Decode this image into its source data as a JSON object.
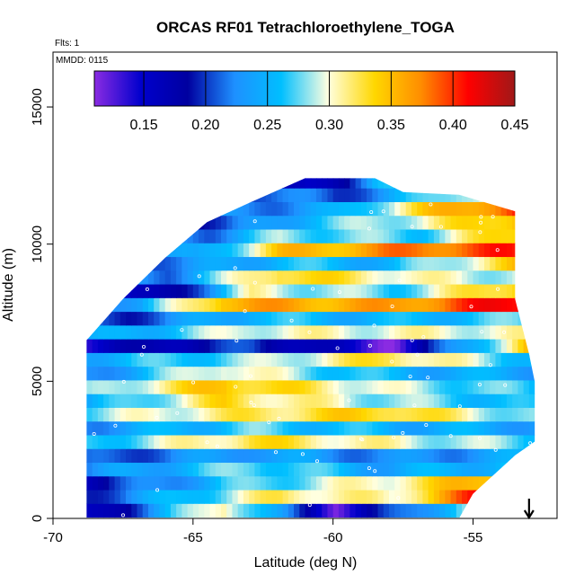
{
  "chart_data": {
    "type": "heatmap",
    "title": "ORCAS RF01 Tetrachloroethylene_TOGA",
    "flights_label": "Flts: 1",
    "date_label": "MMDD: 0115",
    "xlabel": "Latitude (deg N)",
    "ylabel": "Altitude (m)",
    "xlim": [
      -70,
      -52
    ],
    "ylim": [
      0,
      17000
    ],
    "x_ticks": [
      -70,
      -65,
      -60,
      -55
    ],
    "y_ticks": [
      0,
      5000,
      10000,
      15000
    ],
    "colorbar": {
      "range": [
        0.11,
        0.45
      ],
      "ticks": [
        0.15,
        0.2,
        0.25,
        0.3,
        0.35,
        0.4,
        0.45
      ],
      "tick_labels": [
        "0.15",
        "0.20",
        "0.25",
        "0.30",
        "0.35",
        "0.40",
        "0.45"
      ],
      "colors": [
        "#8a2be2",
        "#0000cd",
        "#0000a0",
        "#1e90ff",
        "#00bfff",
        "#ffffe0",
        "#ffd700",
        "#ff8c00",
        "#ff0000",
        "#a01818"
      ]
    },
    "outline": [
      [
        -68.8,
        0
      ],
      [
        -68.8,
        6500
      ],
      [
        -67.5,
        8000
      ],
      [
        -66,
        9500
      ],
      [
        -64.5,
        10800
      ],
      [
        -63,
        11500
      ],
      [
        -61,
        12400
      ],
      [
        -58.5,
        12400
      ],
      [
        -57.5,
        11900
      ],
      [
        -55.5,
        11800
      ],
      [
        -53.5,
        11200
      ],
      [
        -53.5,
        8000
      ],
      [
        -53.0,
        6000
      ],
      [
        -52.8,
        5000
      ],
      [
        -52.8,
        2800
      ],
      [
        -53.5,
        2300
      ],
      [
        -55,
        900
      ],
      [
        -55.5,
        0
      ]
    ],
    "bands": [
      {
        "y": 300,
        "v": 0.22,
        "xs": [
          -68.8,
          -64,
          -60,
          -55.5
        ],
        "vs": [
          0.15,
          0.32,
          0.13,
          0.28
        ]
      },
      {
        "y": 800,
        "v": 0.28,
        "xs": [
          -68.8,
          -62,
          -58,
          -55
        ],
        "vs": [
          0.2,
          0.32,
          0.3,
          0.4
        ]
      },
      {
        "y": 1300,
        "v": 0.26,
        "xs": [
          -68.8,
          -64,
          -58,
          -54.5
        ],
        "vs": [
          0.18,
          0.26,
          0.31,
          0.36
        ]
      },
      {
        "y": 1800,
        "v": 0.24,
        "xs": [
          -68.8,
          -63,
          -58,
          -54
        ],
        "vs": [
          0.22,
          0.28,
          0.24,
          0.26
        ]
      },
      {
        "y": 2300,
        "v": 0.23,
        "xs": [
          -68.8,
          -63,
          -58,
          -53.5
        ],
        "vs": [
          0.2,
          0.24,
          0.22,
          0.24
        ]
      },
      {
        "y": 2800,
        "v": 0.29,
        "xs": [
          -68.8,
          -63,
          -58,
          -52.8
        ],
        "vs": [
          0.26,
          0.33,
          0.3,
          0.27
        ]
      },
      {
        "y": 3300,
        "v": 0.25,
        "xs": [
          -68.8,
          -63,
          -58,
          -52.8
        ],
        "vs": [
          0.23,
          0.27,
          0.25,
          0.24
        ]
      },
      {
        "y": 3800,
        "v": 0.31,
        "xs": [
          -68.8,
          -63,
          -58,
          -52.8
        ],
        "vs": [
          0.28,
          0.32,
          0.34,
          0.27
        ]
      },
      {
        "y": 4300,
        "v": 0.27,
        "xs": [
          -68.8,
          -64,
          -59,
          -52.8
        ],
        "vs": [
          0.24,
          0.33,
          0.29,
          0.25
        ]
      },
      {
        "y": 4800,
        "v": 0.33,
        "xs": [
          -68.8,
          -64,
          -58,
          -52.8
        ],
        "vs": [
          0.27,
          0.35,
          0.29,
          0.26
        ]
      },
      {
        "y": 5300,
        "v": 0.24,
        "xs": [
          -68.8,
          -64,
          -58,
          -53
        ],
        "vs": [
          0.22,
          0.31,
          0.25,
          0.24
        ]
      },
      {
        "y": 5800,
        "v": 0.3,
        "xs": [
          -68.8,
          -63,
          -58,
          -53
        ],
        "vs": [
          0.25,
          0.28,
          0.33,
          0.26
        ]
      },
      {
        "y": 6300,
        "v": 0.16,
        "xs": [
          -68.8,
          -63,
          -58,
          -53
        ],
        "vs": [
          0.15,
          0.2,
          0.12,
          0.35
        ]
      },
      {
        "y": 6800,
        "v": 0.3,
        "xs": [
          -68,
          -63,
          -58,
          -53.5
        ],
        "vs": [
          0.24,
          0.3,
          0.3,
          0.3
        ]
      },
      {
        "y": 7300,
        "v": 0.25,
        "xs": [
          -67.5,
          -63,
          -58,
          -53.5
        ],
        "vs": [
          0.2,
          0.26,
          0.25,
          0.27
        ]
      },
      {
        "y": 7800,
        "v": 0.36,
        "xs": [
          -67,
          -64,
          -58,
          -53.5
        ],
        "vs": [
          0.24,
          0.36,
          0.36,
          0.42
        ]
      },
      {
        "y": 8300,
        "v": 0.25,
        "xs": [
          -66.5,
          -63,
          -58,
          -53.5
        ],
        "vs": [
          0.15,
          0.3,
          0.27,
          0.35
        ]
      },
      {
        "y": 8800,
        "v": 0.29,
        "xs": [
          -66,
          -62,
          -57,
          -53.5
        ],
        "vs": [
          0.22,
          0.34,
          0.3,
          0.29
        ]
      },
      {
        "y": 9300,
        "v": 0.24,
        "xs": [
          -65.5,
          -62,
          -58,
          -53.5
        ],
        "vs": [
          0.22,
          0.26,
          0.25,
          0.34
        ]
      },
      {
        "y": 9800,
        "v": 0.36,
        "xs": [
          -65,
          -62,
          -57,
          -53.5
        ],
        "vs": [
          0.23,
          0.34,
          0.38,
          0.4
        ]
      },
      {
        "y": 10300,
        "v": 0.26,
        "xs": [
          -64.5,
          -62,
          -57,
          -53.5
        ],
        "vs": [
          0.22,
          0.28,
          0.27,
          0.35
        ]
      },
      {
        "y": 10800,
        "v": 0.27,
        "xs": [
          -64,
          -61,
          -57,
          -53.5
        ],
        "vs": [
          0.2,
          0.26,
          0.3,
          0.36
        ]
      },
      {
        "y": 11300,
        "v": 0.26,
        "xs": [
          -63,
          -60,
          -57,
          -53.5
        ],
        "vs": [
          0.22,
          0.24,
          0.33,
          0.4
        ]
      },
      {
        "y": 11800,
        "v": 0.22,
        "xs": [
          -62,
          -60,
          -57,
          -55.5
        ],
        "vs": [
          0.22,
          0.2,
          0.26,
          0.3
        ]
      },
      {
        "y": 12300,
        "v": 0.19,
        "xs": [
          -61,
          -59,
          -58.5
        ],
        "vs": [
          0.15,
          0.22,
          0.25
        ]
      }
    ],
    "arrow_x": -53
  }
}
